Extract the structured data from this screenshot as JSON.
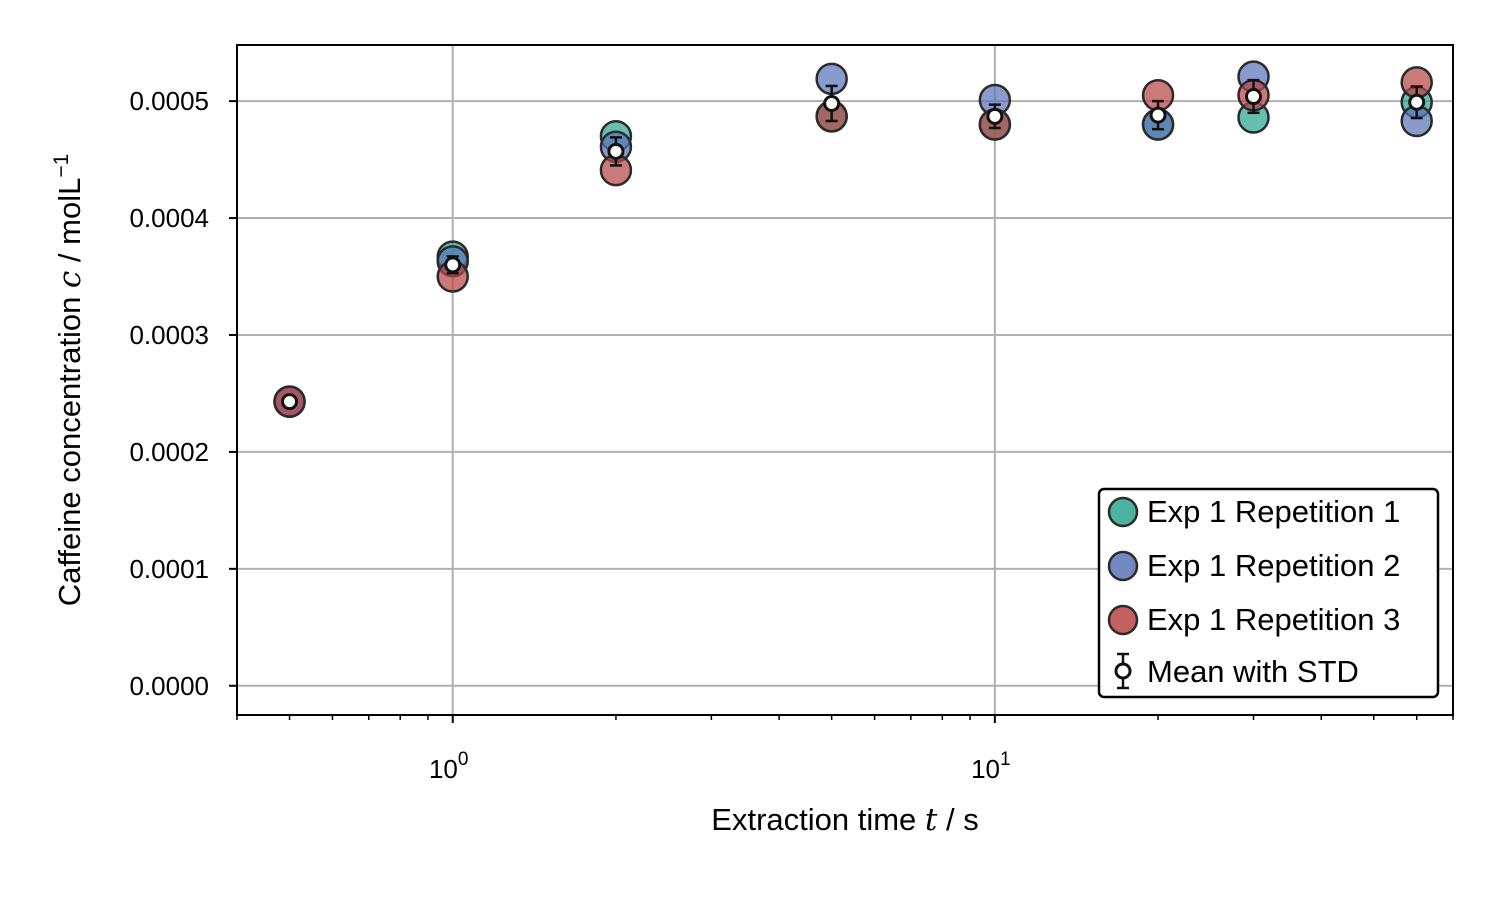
{
  "chart_data": {
    "type": "scatter",
    "xscale": "log",
    "xlim": [
      0.4,
      70
    ],
    "ylim": [
      -2.5e-05,
      0.000548
    ],
    "xticks": [
      {
        "value": 1,
        "base": "10",
        "exp": "0"
      },
      {
        "value": 10,
        "base": "10",
        "exp": "1"
      }
    ],
    "yticks": [
      {
        "value": 0.0,
        "label": "0.0000"
      },
      {
        "value": 0.0001,
        "label": "0.0001"
      },
      {
        "value": 0.0002,
        "label": "0.0002"
      },
      {
        "value": 0.0003,
        "label": "0.0003"
      },
      {
        "value": 0.0004,
        "label": "0.0004"
      },
      {
        "value": 0.0005,
        "label": "0.0005"
      }
    ],
    "grid": true,
    "legend_position": "lower-right",
    "xlabel": {
      "prefix": "Extraction time ",
      "symbol": "t",
      "suffix": " / s"
    },
    "ylabel": {
      "prefix": "Caffeine concentration ",
      "symbol": "c",
      "suffix": " / molL",
      "sup": "−1"
    },
    "x": [
      0.5,
      1,
      2,
      5,
      10,
      20,
      30,
      60
    ],
    "series": [
      {
        "name": "Exp 1 Repetition 1",
        "color": "#2ca58d",
        "y": [
          0.000243,
          0.000367,
          0.00047,
          0.000487,
          0.00048,
          0.00048,
          0.000486,
          0.000499
        ]
      },
      {
        "name": "Exp 1 Repetition 2",
        "color": "#5b73b8",
        "y": [
          0.000243,
          0.000363,
          0.000461,
          0.000519,
          0.000501,
          0.00048,
          0.000521,
          0.000483
        ]
      },
      {
        "name": "Exp 1 Repetition 3",
        "color": "#b84545",
        "y": [
          0.000243,
          0.00035,
          0.000441,
          0.000487,
          0.00048,
          0.000505,
          0.000505,
          0.000516
        ]
      }
    ],
    "mean": {
      "name": "Mean with STD",
      "y": [
        0.000243,
        0.00036,
        0.000457,
        0.000498,
        0.000487,
        0.000488,
        0.000504,
        0.000499
      ],
      "std": [
        5e-07,
        7.2e-06,
        1.2e-05,
        1.5e-05,
        1e-05,
        1.2e-05,
        1.4e-05,
        1.35e-05
      ]
    }
  }
}
